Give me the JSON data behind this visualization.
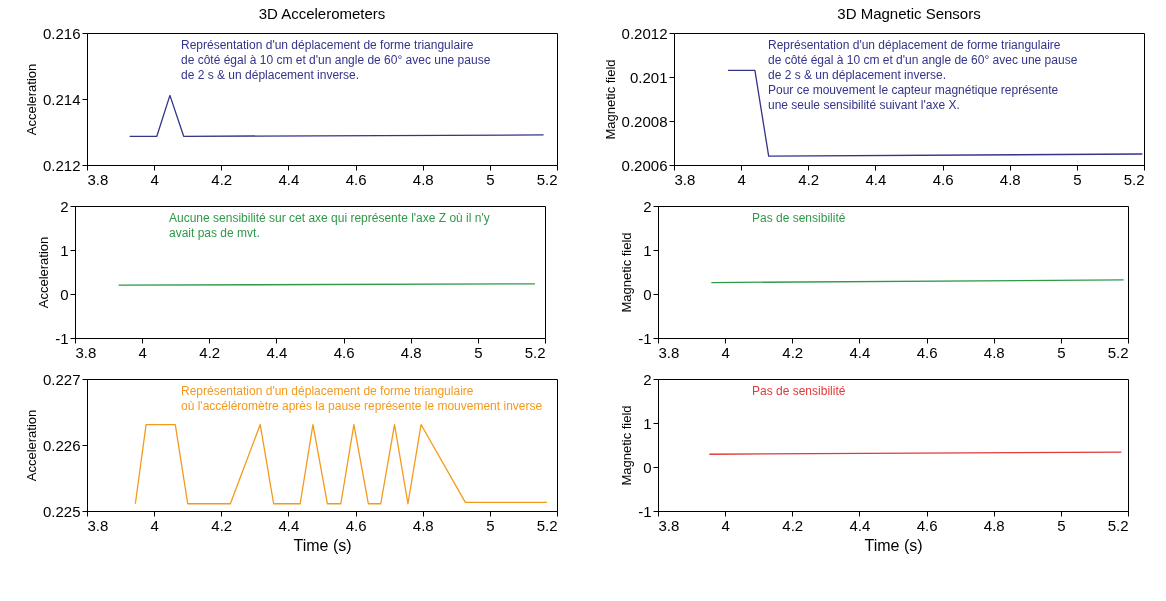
{
  "chart_data": [
    {
      "type": "line",
      "title": "3D Accelerometers",
      "ylabel": "Acceleration",
      "x": [
        3.927,
        4.008,
        4.047,
        4.088,
        5.16
      ],
      "values": [
        0.21287,
        0.21287,
        0.21411,
        0.21287,
        0.21291
      ],
      "color": "#34348a",
      "xlim": [
        3.8,
        5.2
      ],
      "xticks": [
        3.8,
        4,
        4.2,
        4.4,
        4.6,
        4.8,
        5,
        5.2
      ],
      "ylim": [
        0.212,
        0.216
      ],
      "yticks": [
        0.212,
        0.214,
        0.216
      ],
      "grid": false,
      "annotations": [
        "Représentation d'un déplacement de forme triangulaire\nde côté égal à 10 cm et d'un angle de 60° avec une pause\n de 2 s & un déplacement inverse."
      ]
    },
    {
      "type": "line",
      "title": "3D Magnetic Sensors",
      "ylabel": "Magnetic field",
      "x": [
        3.961,
        4.041,
        4.082,
        5.195
      ],
      "values": [
        0.20103,
        0.20103,
        0.20064,
        0.20065
      ],
      "color": "#34348a",
      "xlim": [
        3.8,
        5.2
      ],
      "xticks": [
        3.8,
        4,
        4.2,
        4.4,
        4.6,
        4.8,
        5,
        5.2
      ],
      "ylim": [
        0.2006,
        0.2012
      ],
      "yticks": [
        0.2006,
        0.2008,
        0.201,
        0.2012
      ],
      "grid": false,
      "annotations": [
        "Représentation d'un déplacement de forme triangulaire\nde côté égal à 10 cm et d'un angle de 60° avec une pause\n de 2 s & un déplacement inverse.\nPour ce mouvement le capteur magnétique représente\nune seule sensibilité suivant l'axe X."
      ]
    },
    {
      "type": "line",
      "ylabel": "Acceleration",
      "x": [
        3.93,
        5.17
      ],
      "values": [
        0.2,
        0.23
      ],
      "color": "#2e9a48",
      "xlim": [
        3.8,
        5.2
      ],
      "xticks": [
        3.8,
        4,
        4.2,
        4.4,
        4.6,
        4.8,
        5,
        5.2
      ],
      "ylim": [
        -1,
        2
      ],
      "yticks": [
        -1,
        0,
        1,
        2
      ],
      "grid": false,
      "annotations": [
        "Aucune sensibilité sur cet axe qui représente l'axe Z où il n'y\n avait pas de mvt."
      ]
    },
    {
      "type": "line",
      "ylabel": "Magnetic field",
      "x": [
        3.959,
        5.187
      ],
      "values": [
        0.26,
        0.32
      ],
      "color": "#2e9a48",
      "xlim": [
        3.8,
        5.2
      ],
      "xticks": [
        3.8,
        4,
        4.2,
        4.4,
        4.6,
        4.8,
        5,
        5.2
      ],
      "ylim": [
        -1,
        2
      ],
      "yticks": [
        -1,
        0,
        1,
        2
      ],
      "grid": false,
      "annotations": [
        "Pas de sensibilité"
      ]
    },
    {
      "type": "line",
      "xlabel": "Time (s)",
      "ylabel": "Acceleration",
      "x": [
        3.944,
        3.976,
        4.063,
        4.1,
        4.227,
        4.316,
        4.356,
        4.435,
        4.473,
        4.516,
        4.556,
        4.595,
        4.638,
        4.675,
        4.716,
        4.756,
        4.795,
        4.927,
        5.17
      ],
      "values": [
        0.22511,
        0.22631,
        0.22631,
        0.22511,
        0.22511,
        0.22631,
        0.22511,
        0.22511,
        0.22631,
        0.22511,
        0.22511,
        0.22631,
        0.22511,
        0.22511,
        0.22631,
        0.22511,
        0.22631,
        0.22513,
        0.22513
      ],
      "color": "#f39a1c",
      "xlim": [
        3.8,
        5.2
      ],
      "xticks": [
        3.8,
        4,
        4.2,
        4.4,
        4.6,
        4.8,
        5,
        5.2
      ],
      "ylim": [
        0.225,
        0.227
      ],
      "yticks": [
        0.225,
        0.226,
        0.227
      ],
      "grid": false,
      "annotations": [
        "Représentation d'un déplacement de forme triangulaire\noù l'accéléromètre après la pause représente le mouvement inverse"
      ]
    },
    {
      "type": "line",
      "xlabel": "Time (s)",
      "ylabel": "Magnetic field",
      "x": [
        3.953,
        5.18
      ],
      "values": [
        0.29,
        0.34
      ],
      "color": "#e03a3a",
      "xlim": [
        3.8,
        5.2
      ],
      "xticks": [
        3.8,
        4,
        4.2,
        4.4,
        4.6,
        4.8,
        5,
        5.2
      ],
      "ylim": [
        -1,
        2
      ],
      "yticks": [
        -1,
        0,
        1,
        2
      ],
      "grid": false,
      "annotations": [
        "Pas de sensibilité"
      ]
    }
  ]
}
